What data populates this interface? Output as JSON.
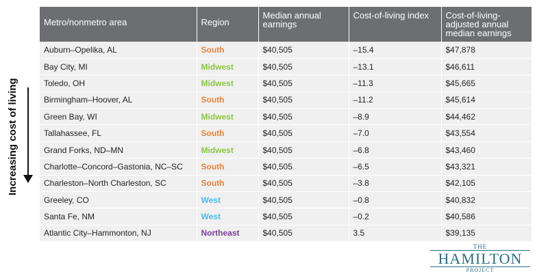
{
  "side_label": "Increasing cost of living",
  "columns": [
    "Metro/nonmetro area",
    "Region",
    "Median annual earnings",
    "Cost-of-living index",
    "Cost-of-living-adjusted annual median earnings"
  ],
  "region_colors": {
    "South": "#e8833a",
    "Midwest": "#8dc63f",
    "West": "#4bbce8",
    "Northeast": "#7b3f98"
  },
  "rows": [
    {
      "area": "Auburn–Opelika, AL",
      "region": "South",
      "earnings": "$40,505",
      "index": "–15.4",
      "adjusted": "$47,878"
    },
    {
      "area": "Bay City, MI",
      "region": "Midwest",
      "earnings": "$40,505",
      "index": "–13.1",
      "adjusted": "$46,611"
    },
    {
      "area": "Toledo, OH",
      "region": "Midwest",
      "earnings": "$40,505",
      "index": "–11.3",
      "adjusted": "$45,665"
    },
    {
      "area": "Birmingham–Hoover, AL",
      "region": "South",
      "earnings": "$40,505",
      "index": "–11.2",
      "adjusted": "$45,614"
    },
    {
      "area": "Green Bay, WI",
      "region": "Midwest",
      "earnings": "$40,505",
      "index": "–8.9",
      "adjusted": "$44,462"
    },
    {
      "area": "Tallahassee, FL",
      "region": "South",
      "earnings": "$40,505",
      "index": "–7.0",
      "adjusted": "$43,554"
    },
    {
      "area": "Grand Forks, ND–MN",
      "region": "Midwest",
      "earnings": "$40,505",
      "index": "–6.8",
      "adjusted": "$43,460"
    },
    {
      "area": "Charlotte–Concord–Gastonia, NC–SC",
      "region": "South",
      "earnings": "$40,505",
      "index": "–6.5",
      "adjusted": "$43,321"
    },
    {
      "area": "Charleston–North Charleston, SC",
      "region": "South",
      "earnings": "$40,505",
      "index": "–3.8",
      "adjusted": "$42,105"
    },
    {
      "area": "Greeley, CO",
      "region": "West",
      "earnings": "$40,505",
      "index": "–0.8",
      "adjusted": "$40,832"
    },
    {
      "area": "Santa Fe, NM",
      "region": "West",
      "earnings": "$40,505",
      "index": "–0.2",
      "adjusted": "$40,586"
    },
    {
      "area": "Atlantic City–Hammonton, NJ",
      "region": "Northeast",
      "earnings": "$40,505",
      "index": "3.5",
      "adjusted": "$39,135"
    }
  ],
  "logo": {
    "top": "THE",
    "main": "HAMILTON",
    "bottom": "PROJECT"
  }
}
